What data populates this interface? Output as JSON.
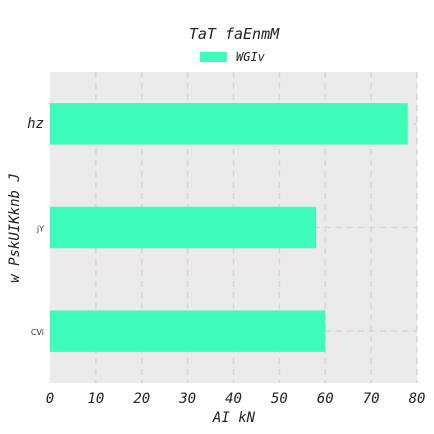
{
  "chart_data": {
    "type": "bar",
    "orientation": "horizontal",
    "title": "TaT faEnmM",
    "xlabel": "AI  kN",
    "ylabel": "w PskUIKknb  J",
    "categories": [
      "hz",
      "jY",
      "CVi"
    ],
    "series": [
      {
        "name": "WGIv",
        "values": [
          78,
          58,
          60
        ],
        "color": "#3dfdb8"
      }
    ],
    "xlim": [
      0,
      80
    ],
    "xticks": [
      0,
      10,
      20,
      30,
      40,
      50,
      60,
      70,
      80
    ],
    "grid": true,
    "legend_position": "top-center",
    "background_color": "#ebebeb",
    "grid_color": "#d6d6d6"
  }
}
